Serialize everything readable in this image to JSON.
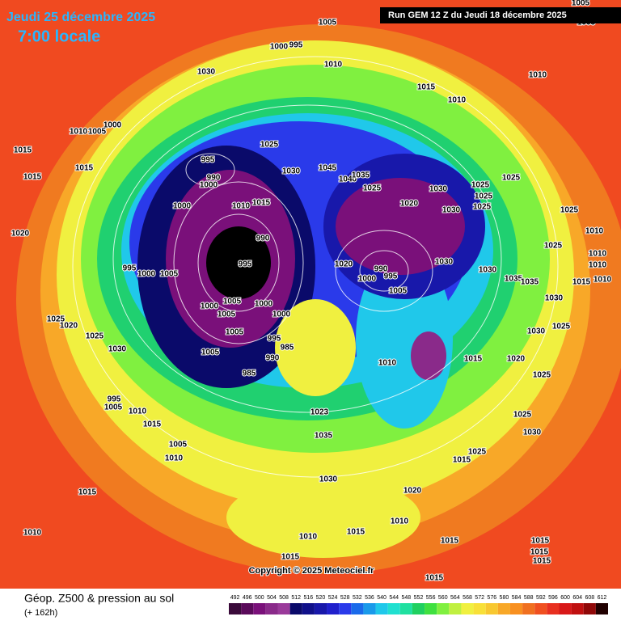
{
  "header": {
    "date": "Jeudi 25 décembre 2025",
    "time": "7:00 locale",
    "run": "Run GEM 12 Z du Jeudi 18 décembre 2025"
  },
  "map": {
    "isobar_labels": [
      1005,
      1000,
      995,
      1010,
      1030,
      1015,
      1010,
      1010,
      1005,
      1005,
      1000,
      1010,
      1005,
      1015,
      1015,
      1015,
      1025,
      995,
      990,
      1000,
      1030,
      1045,
      1040,
      1035,
      1025,
      1030,
      1025,
      1025,
      1025,
      1025,
      1000,
      1010,
      1015,
      1020,
      1030,
      1020,
      990,
      1025,
      1025,
      1010,
      995,
      1000,
      1005,
      995,
      1020,
      990,
      1000,
      995,
      1030,
      1030,
      1035,
      1035,
      1010,
      1010,
      1010,
      1015,
      1005,
      1000,
      1005,
      1000,
      1005,
      1000,
      1030,
      1025,
      1020,
      1025,
      1005,
      995,
      985,
      1030,
      1005,
      990,
      1010,
      1015,
      1020,
      1030,
      1025,
      985,
      1025,
      995,
      1005,
      1010,
      1023,
      1015,
      1035,
      1025,
      1030,
      1005,
      1010,
      1025,
      1015,
      1030,
      1015,
      1020,
      1010,
      1010,
      1010,
      1015,
      1015,
      1015,
      1015,
      1015,
      1015,
      1015
    ],
    "copyright": "Copyright © 2025 Meteociel.fr"
  },
  "legend": {
    "title": "Géop. Z500 & pression au sol",
    "lead": "(+ 162h)",
    "scale": [
      492,
      496,
      500,
      504,
      508,
      512,
      516,
      520,
      524,
      528,
      532,
      536,
      540,
      544,
      548,
      552,
      556,
      560,
      564,
      568,
      572,
      576,
      580,
      584,
      588,
      592,
      596,
      600,
      604,
      608,
      612
    ],
    "colors": [
      "#3a0a3a",
      "#5a0a5a",
      "#7a107a",
      "#8a2a8a",
      "#9a3a9a",
      "#0a0a6a",
      "#10108a",
      "#1818aa",
      "#2020cc",
      "#2a3aea",
      "#1a6aea",
      "#1a9aea",
      "#20c8ea",
      "#20e0d0",
      "#20e0a0",
      "#20d060",
      "#40e040",
      "#80f040",
      "#c0f040",
      "#f0f040",
      "#f8e038",
      "#f8c830",
      "#f8a828",
      "#f89020",
      "#f07020",
      "#f05020",
      "#e83020",
      "#d81818",
      "#c01010",
      "#900808",
      "#200000"
    ]
  }
}
